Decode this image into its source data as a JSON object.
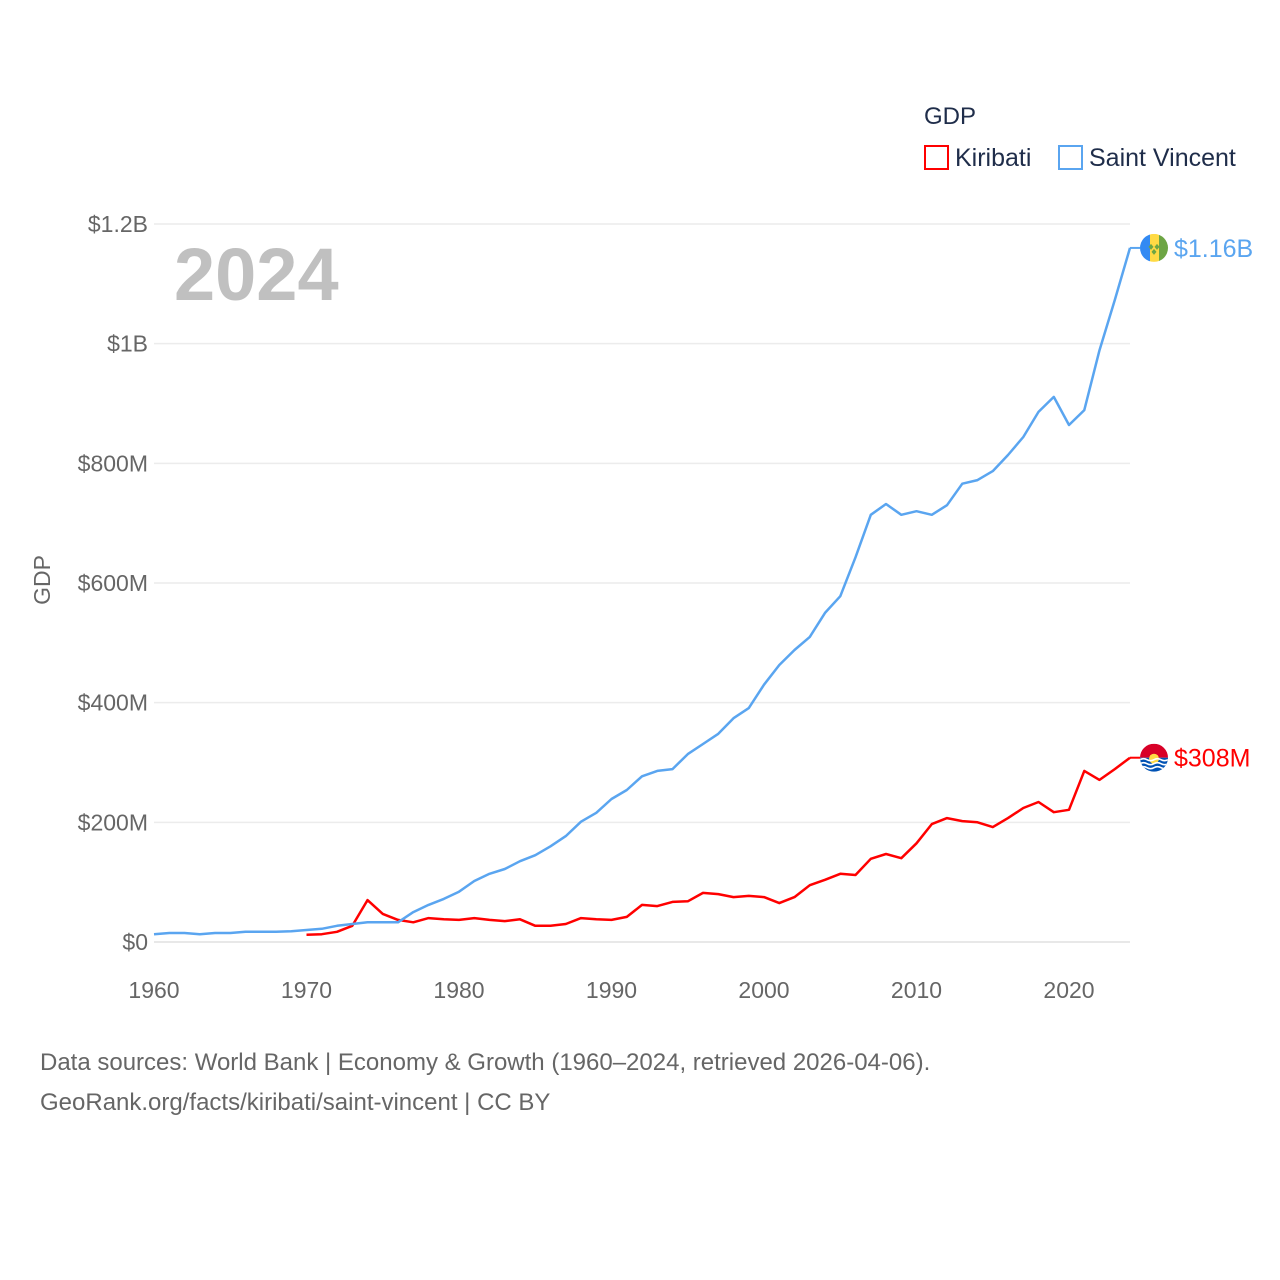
{
  "chart_data": {
    "type": "line",
    "year_label": "2024",
    "ylabel": "GDP",
    "xlabel": "",
    "legend": {
      "title": "GDP",
      "placement": "top-right"
    },
    "xlim": [
      1960,
      2024
    ],
    "ylim": [
      0,
      1200
    ],
    "y_unit": "USD millions",
    "x_ticks": [
      1960,
      1970,
      1980,
      1990,
      2000,
      2010,
      2020
    ],
    "x_tick_labels": [
      "1960",
      "1970",
      "1980",
      "1990",
      "2000",
      "2010",
      "2020"
    ],
    "y_ticks": [
      0,
      200,
      400,
      600,
      800,
      1000,
      1200
    ],
    "y_tick_labels": [
      "$0",
      "$200M",
      "$400M",
      "$600M",
      "$800M",
      "$1B",
      "$1.2B"
    ],
    "grid": true,
    "series": [
      {
        "name": "Kiribati",
        "color": "#ff0000",
        "end_label": "$308M",
        "flag_icon": "kiribati-flag-icon",
        "start_year": 1970,
        "values": [
          12,
          13,
          17,
          27,
          70,
          47,
          37,
          33,
          40,
          38,
          37,
          40,
          37,
          35,
          38,
          27,
          27,
          30,
          40,
          38,
          37,
          42,
          62,
          60,
          67,
          68,
          82,
          80,
          75,
          77,
          75,
          65,
          75,
          95,
          104,
          114,
          112,
          139,
          147,
          140,
          165,
          197,
          207,
          202,
          200,
          192,
          207,
          224,
          234,
          217,
          221,
          286,
          271,
          289,
          308
        ]
      },
      {
        "name": "Saint Vincent",
        "color": "#5aa5f0",
        "end_label": "$1.16B",
        "flag_icon": "saint-vincent-flag-icon",
        "start_year": 1960,
        "values": [
          13,
          15,
          15,
          13,
          15,
          15,
          17,
          17,
          17,
          18,
          20,
          22,
          27,
          30,
          33,
          33,
          33,
          50,
          62,
          72,
          84,
          102,
          114,
          122,
          135,
          145,
          160,
          177,
          201,
          216,
          239,
          254,
          277,
          286,
          289,
          314,
          331,
          348,
          374,
          391,
          430,
          463,
          488,
          510,
          550,
          578,
          643,
          714,
          732,
          714,
          720,
          714,
          730,
          766,
          772,
          787,
          814,
          844,
          886,
          911,
          864,
          889,
          989,
          1073,
          1160
        ]
      }
    ]
  },
  "footer": {
    "line1": "Data sources: World Bank | Economy & Growth (1960–2024, retrieved 2026-04-06).",
    "line2": "GeoRank.org/facts/kiribati/saint-vincent | CC BY"
  }
}
